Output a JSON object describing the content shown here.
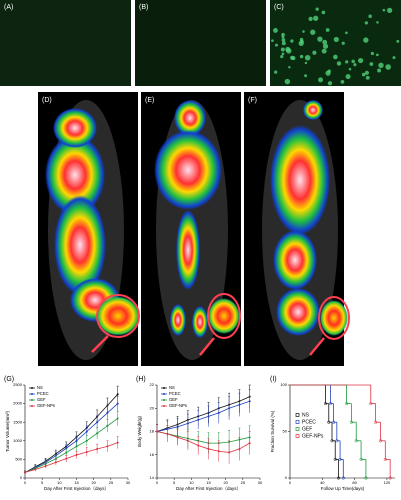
{
  "panels": {
    "a": "(A)",
    "b": "(B)",
    "c": "(C)",
    "d": "(D)",
    "e": "(E)",
    "f": "(F)"
  },
  "chart_data": [
    {
      "type": "line",
      "panel_label": "(G)",
      "y_label": "Tumor Volume(mm³)",
      "x_label": "Day After First Injection（days）",
      "x": [
        0,
        3,
        6,
        9,
        12,
        15,
        18,
        21,
        24,
        27
      ],
      "xlim": [
        0,
        30
      ],
      "xticks": [
        0,
        5,
        10,
        15,
        20,
        25,
        30
      ],
      "ylim": [
        0,
        2500
      ],
      "yticks": [
        0,
        500,
        1000,
        1500,
        2000,
        2500
      ],
      "series": [
        {
          "name": "NS",
          "color": "#111111",
          "values": [
            150,
            300,
            450,
            650,
            850,
            1100,
            1350,
            1650,
            1950,
            2250
          ],
          "errors": [
            40,
            60,
            80,
            100,
            120,
            140,
            160,
            180,
            200,
            220
          ]
        },
        {
          "name": "PCEC",
          "color": "#1f3fbf",
          "values": [
            150,
            280,
            420,
            600,
            800,
            1000,
            1250,
            1500,
            1750,
            2000
          ],
          "errors": [
            40,
            60,
            80,
            100,
            110,
            130,
            150,
            170,
            190,
            200
          ]
        },
        {
          "name": "GEF",
          "color": "#1a9a3a",
          "values": [
            150,
            260,
            380,
            520,
            680,
            850,
            1000,
            1200,
            1400,
            1600
          ],
          "errors": [
            40,
            50,
            70,
            90,
            100,
            120,
            140,
            150,
            170,
            190
          ]
        },
        {
          "name": "GEF-NPs",
          "color": "#e03040",
          "values": [
            150,
            230,
            320,
            420,
            520,
            620,
            700,
            780,
            850,
            950
          ],
          "errors": [
            40,
            50,
            60,
            80,
            90,
            100,
            120,
            130,
            150,
            160
          ]
        }
      ]
    },
    {
      "type": "line",
      "panel_label": "(H)",
      "y_label": "Body Weight(g)",
      "x_label": "Day After First Injection（days）",
      "x": [
        0,
        3,
        6,
        9,
        12,
        15,
        18,
        21,
        24,
        27
      ],
      "xlim": [
        0,
        30
      ],
      "xticks": [
        0,
        5,
        10,
        15,
        20,
        25,
        30
      ],
      "ylim": [
        14,
        22
      ],
      "yticks": [
        14,
        16,
        18,
        20,
        22
      ],
      "series": [
        {
          "name": "NS",
          "color": "#111111",
          "values": [
            18,
            18.3,
            18.6,
            19,
            19.3,
            19.6,
            20,
            20.3,
            20.6,
            21
          ],
          "errors": [
            0.6,
            0.7,
            0.7,
            0.8,
            0.8,
            0.9,
            0.9,
            1,
            1,
            1
          ]
        },
        {
          "name": "PCEC",
          "color": "#1f3fbf",
          "values": [
            18,
            18.2,
            18.4,
            18.7,
            19,
            19.3,
            19.6,
            20,
            20.3,
            20.6
          ],
          "errors": [
            0.6,
            0.7,
            0.7,
            0.8,
            0.8,
            0.9,
            0.9,
            1,
            1,
            1
          ]
        },
        {
          "name": "GEF",
          "color": "#1a9a3a",
          "values": [
            18,
            17.8,
            17.6,
            17.4,
            17.2,
            17,
            17,
            17.1,
            17.3,
            17.5
          ],
          "errors": [
            0.6,
            0.7,
            0.7,
            0.8,
            0.8,
            0.9,
            0.9,
            1,
            1,
            1
          ]
        },
        {
          "name": "GEF-NPs",
          "color": "#e03040",
          "values": [
            18,
            17.8,
            17.5,
            17.2,
            16.8,
            16.5,
            16.3,
            16.2,
            16.5,
            17
          ],
          "errors": [
            0.6,
            0.7,
            0.7,
            0.8,
            0.8,
            0.9,
            0.9,
            1,
            1,
            1
          ]
        }
      ]
    },
    {
      "type": "step",
      "panel_label": "(I)",
      "y_label": "Fraction Survival (%)",
      "x_label": "Follow Up Time(days)",
      "xlim": [
        0,
        130
      ],
      "xticks": [
        0,
        40,
        80,
        120
      ],
      "ylim": [
        0,
        100
      ],
      "yticks": [
        0,
        50,
        100
      ],
      "series": [
        {
          "name": "NS",
          "color": "#111111",
          "x": [
            0,
            44,
            48,
            52,
            56,
            60
          ],
          "values": [
            100,
            80,
            60,
            40,
            20,
            0
          ]
        },
        {
          "name": "PCEC",
          "color": "#1f3fbf",
          "x": [
            0,
            50,
            54,
            58,
            62,
            66
          ],
          "values": [
            100,
            80,
            60,
            40,
            20,
            0
          ]
        },
        {
          "name": "GEF",
          "color": "#1a9a3a",
          "x": [
            0,
            70,
            76,
            82,
            88,
            94
          ],
          "values": [
            100,
            80,
            60,
            40,
            20,
            0
          ]
        },
        {
          "name": "GEF-NPs",
          "color": "#e03040",
          "x": [
            0,
            100,
            106,
            112,
            118,
            124
          ],
          "values": [
            100,
            80,
            60,
            40,
            20,
            0
          ]
        }
      ]
    }
  ]
}
